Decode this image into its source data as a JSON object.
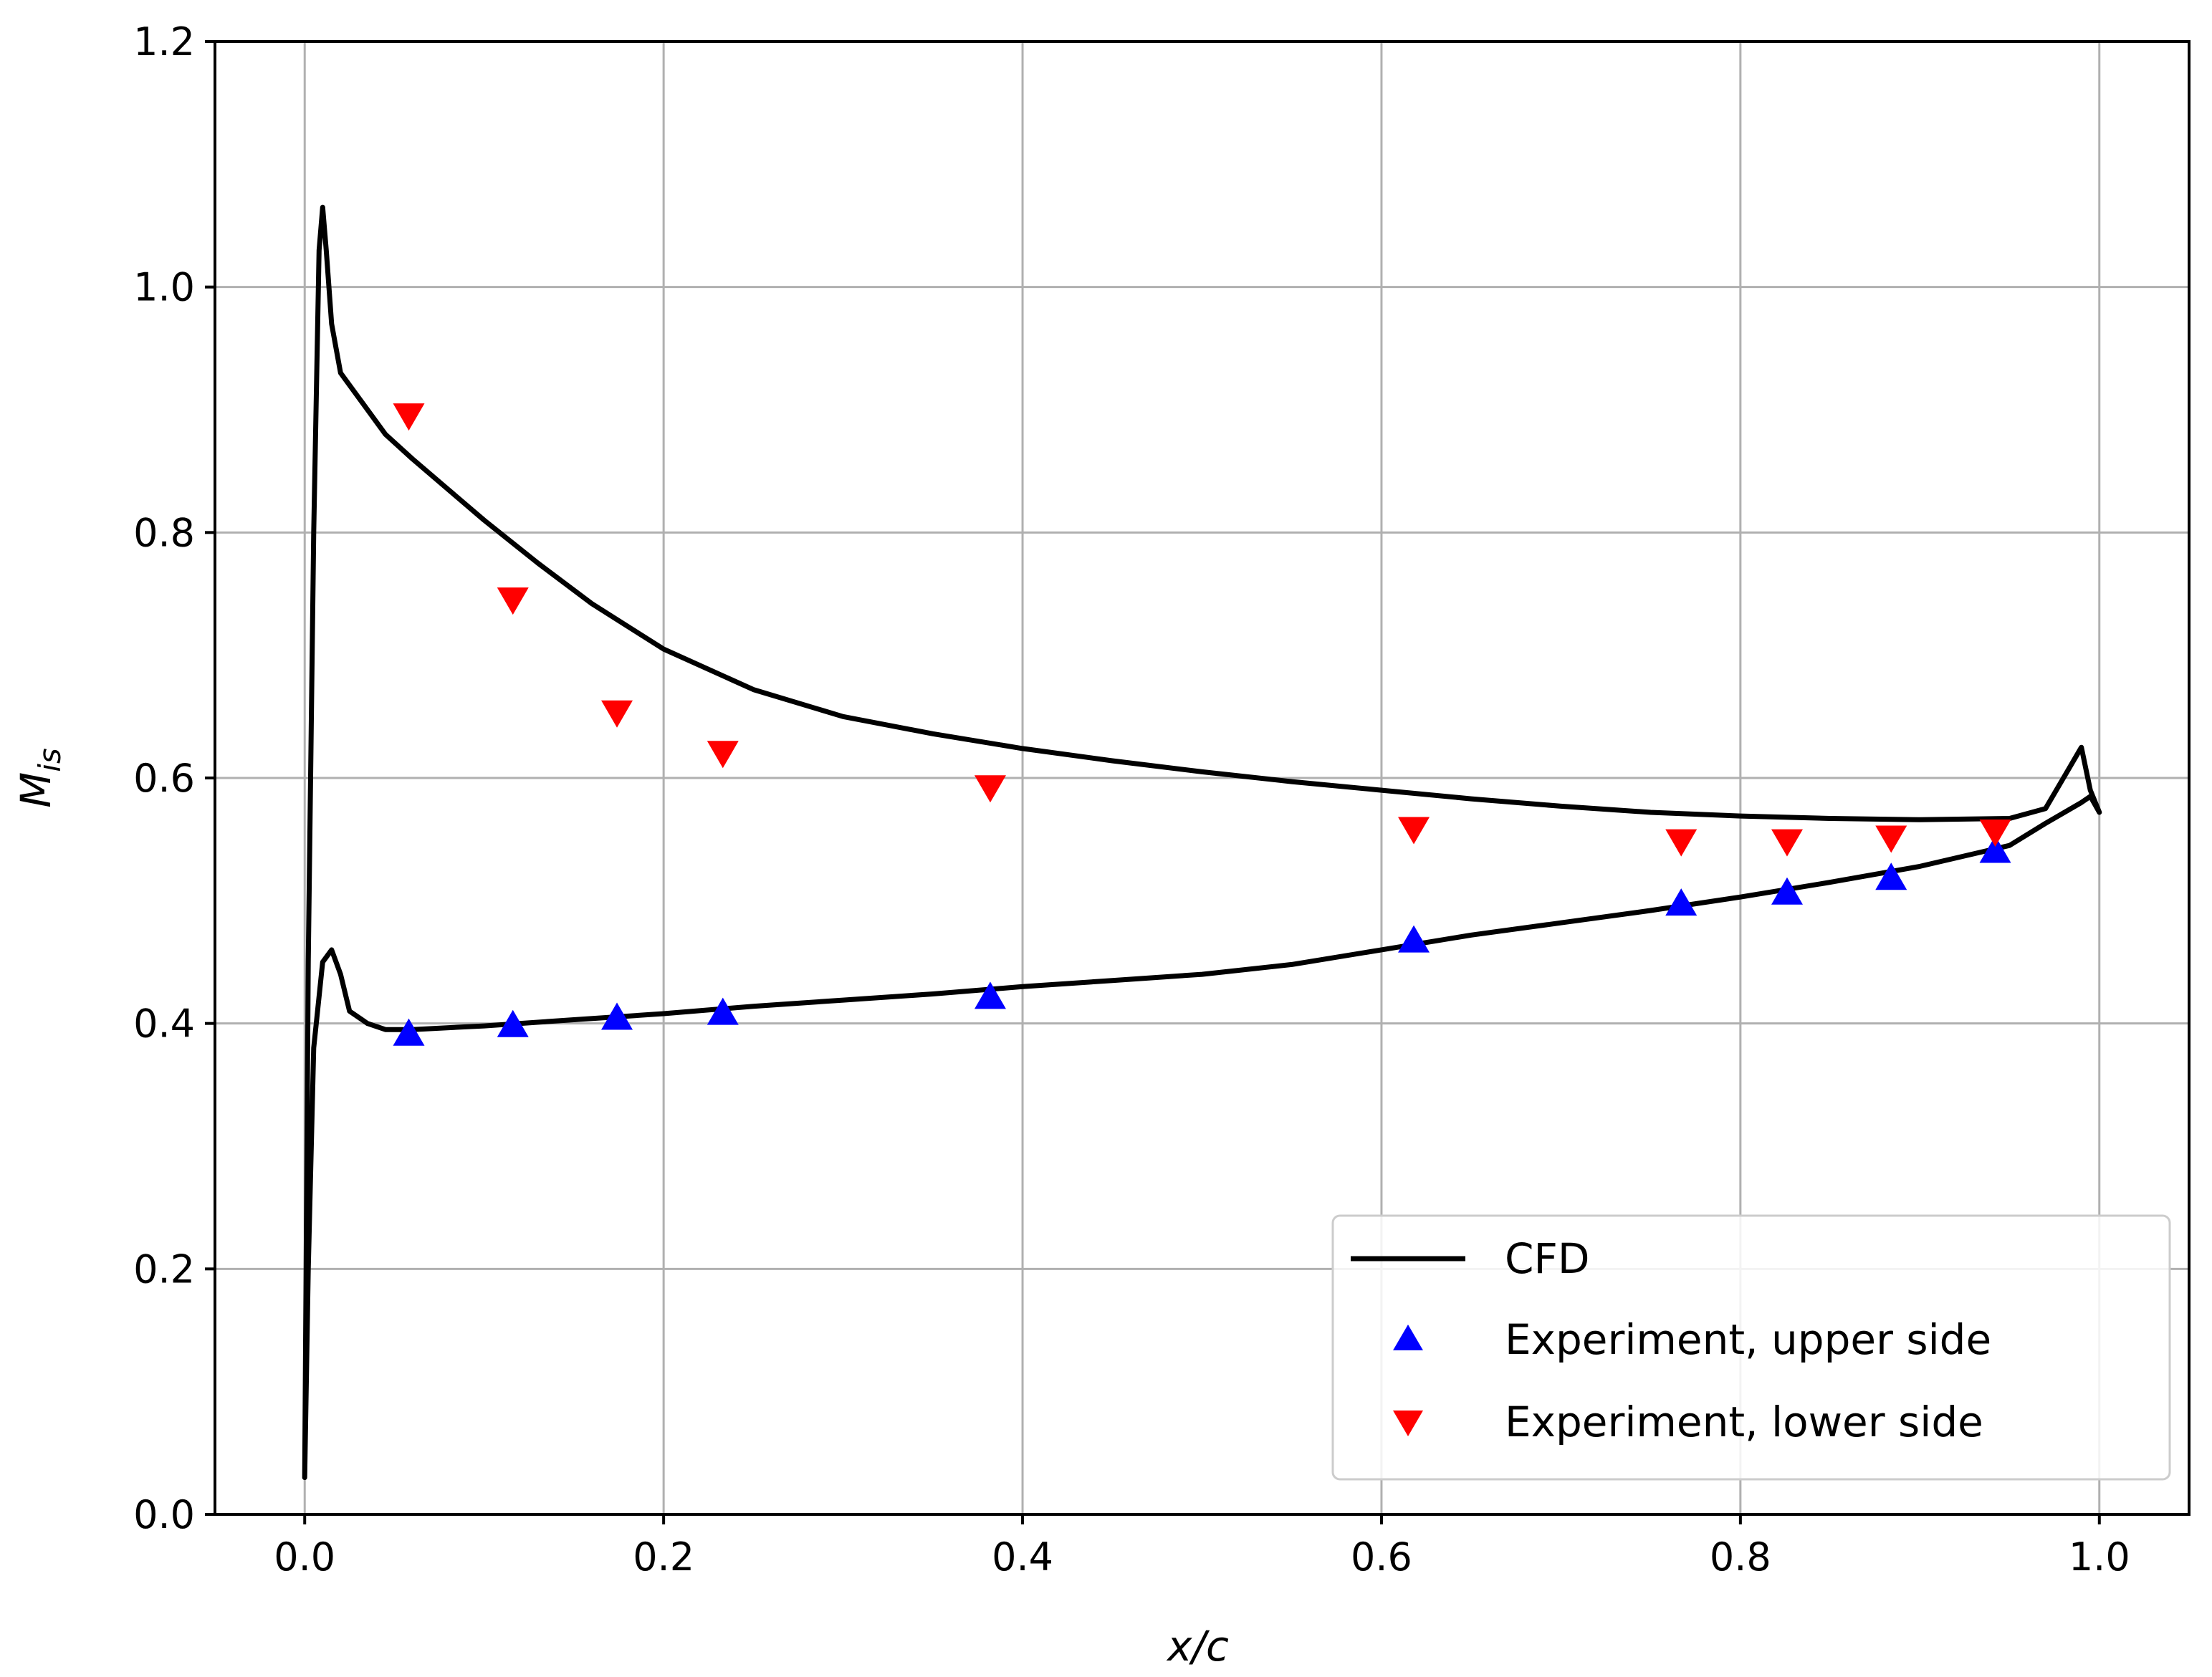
{
  "chart_data": {
    "type": "line",
    "title": "",
    "xlabel": "x/c",
    "ylabel_main": "M",
    "ylabel_sub": "is",
    "xlim": [
      -0.05,
      1.05
    ],
    "ylim": [
      0.0,
      1.2
    ],
    "xticks": [
      0.0,
      0.2,
      0.4,
      0.6,
      0.8,
      1.0
    ],
    "xtick_labels": [
      "0.0",
      "0.2",
      "0.4",
      "0.6",
      "0.8",
      "1.0"
    ],
    "yticks": [
      0.0,
      0.2,
      0.4,
      0.6,
      0.8,
      1.0,
      1.2
    ],
    "ytick_labels": [
      "0.0",
      "0.2",
      "0.4",
      "0.6",
      "0.8",
      "1.0",
      "1.2"
    ],
    "grid": true,
    "legend_position": "lower-right",
    "series": [
      {
        "name": "CFD",
        "kind": "line",
        "color": "#000000",
        "x": [
          0.0,
          0.002,
          0.005,
          0.008,
          0.01,
          0.012,
          0.015,
          0.02,
          0.03,
          0.045,
          0.06,
          0.08,
          0.1,
          0.13,
          0.16,
          0.2,
          0.25,
          0.3,
          0.35,
          0.4,
          0.45,
          0.5,
          0.55,
          0.6,
          0.65,
          0.7,
          0.75,
          0.8,
          0.85,
          0.9,
          0.95,
          0.97,
          0.98,
          0.99,
          0.995,
          1.0,
          0.995,
          0.99,
          0.97,
          0.95,
          0.9,
          0.85,
          0.8,
          0.75,
          0.7,
          0.65,
          0.6,
          0.55,
          0.5,
          0.45,
          0.4,
          0.35,
          0.3,
          0.25,
          0.2,
          0.15,
          0.1,
          0.06,
          0.045,
          0.035,
          0.025,
          0.02,
          0.015,
          0.01,
          0.005,
          0.002,
          0.0
        ],
        "y": [
          0.03,
          0.45,
          0.8,
          1.03,
          1.065,
          1.03,
          0.97,
          0.93,
          0.91,
          0.88,
          0.86,
          0.835,
          0.81,
          0.775,
          0.742,
          0.705,
          0.672,
          0.65,
          0.636,
          0.624,
          0.614,
          0.605,
          0.597,
          0.59,
          0.583,
          0.577,
          0.572,
          0.569,
          0.567,
          0.566,
          0.567,
          0.575,
          0.6,
          0.625,
          0.59,
          0.572,
          0.585,
          0.58,
          0.563,
          0.545,
          0.528,
          0.515,
          0.503,
          0.492,
          0.482,
          0.472,
          0.46,
          0.448,
          0.44,
          0.435,
          0.43,
          0.424,
          0.419,
          0.414,
          0.408,
          0.403,
          0.398,
          0.395,
          0.395,
          0.4,
          0.41,
          0.44,
          0.46,
          0.45,
          0.38,
          0.2,
          0.03
        ]
      },
      {
        "name": "Experiment, upper side",
        "kind": "marker",
        "marker": "triangle-up",
        "color": "#0000ff",
        "x": [
          0.058,
          0.116,
          0.174,
          0.233,
          0.382,
          0.618,
          0.767,
          0.826,
          0.884,
          0.942
        ],
        "y": [
          0.39,
          0.397,
          0.403,
          0.407,
          0.42,
          0.466,
          0.496,
          0.505,
          0.517,
          0.539
        ]
      },
      {
        "name": "Experiment, lower side",
        "kind": "marker",
        "marker": "triangle-down",
        "color": "#ff0000",
        "x": [
          0.058,
          0.116,
          0.174,
          0.233,
          0.382,
          0.618,
          0.767,
          0.826,
          0.884,
          0.942
        ],
        "y": [
          0.897,
          0.747,
          0.655,
          0.622,
          0.594,
          0.56,
          0.55,
          0.55,
          0.553,
          0.558
        ]
      }
    ]
  }
}
